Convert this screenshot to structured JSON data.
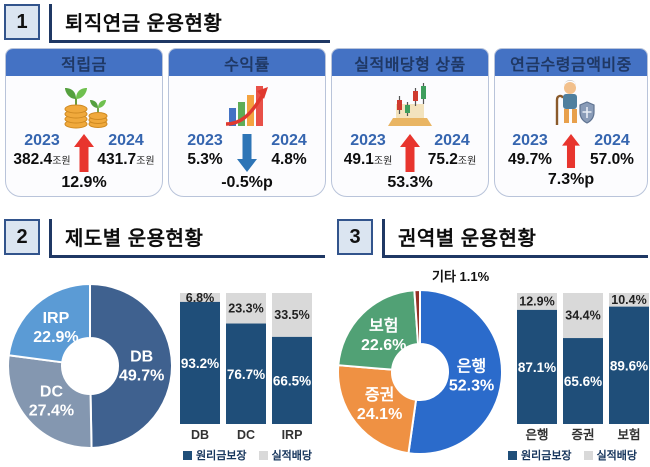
{
  "sections": [
    {
      "number": "1",
      "title": "퇴직연금  운용현황"
    },
    {
      "number": "2",
      "title": "제도별  운용현황"
    },
    {
      "number": "3",
      "title": "권역별  운용현황"
    }
  ],
  "colors": {
    "card_header": "#4472c4",
    "card_header_text": "#1f3864",
    "navy_bar": "#1f4e79",
    "gray_bar": "#d9d9d9",
    "up_arrow_red": "#e8352e",
    "down_arrow_blue": "#2e75b6",
    "year_blue": "#3565af",
    "section_line": "#1f3864"
  },
  "cards": [
    {
      "title": "적립금",
      "icon": "coin-sprout-icon",
      "year_left": "2023",
      "value_left": "382.4",
      "unit_left": "조원",
      "year_right": "2024",
      "value_right": "431.7",
      "unit_right": "조원",
      "delta": "12.9%",
      "direction": "up"
    },
    {
      "title": "수익률",
      "icon": "growth-chart-icon",
      "year_left": "2023",
      "value_left": "5.3%",
      "unit_left": "",
      "year_right": "2024",
      "value_right": "4.8%",
      "unit_right": "",
      "delta": "-0.5%p",
      "direction": "down"
    },
    {
      "title": "실적배당형 상품",
      "icon": "candlestick-chart-icon",
      "year_left": "2023",
      "value_left": "49.1",
      "unit_left": "조원",
      "year_right": "2024",
      "value_right": "75.2",
      "unit_right": "조원",
      "delta": "53.3%",
      "direction": "up"
    },
    {
      "title": "연금수령금액비중",
      "icon": "senior-shield-icon",
      "year_left": "2023",
      "value_left": "49.7%",
      "unit_left": "",
      "year_right": "2024",
      "value_right": "57.0%",
      "unit_right": "",
      "delta": "7.3%p",
      "direction": "up"
    }
  ],
  "chart_data": [
    {
      "type": "pie",
      "donut": true,
      "title": "제도별 적립금 비중",
      "labels": [
        "DB",
        "DC",
        "IRP"
      ],
      "values": [
        49.7,
        27.4,
        22.9
      ],
      "display": [
        "49.7%",
        "27.4%",
        "22.9%"
      ],
      "colors": [
        "#3f618f",
        "#8497b0",
        "#5b9bd5"
      ],
      "legend_position": "none"
    },
    {
      "type": "bar",
      "subtype": "stacked100",
      "title": "제도별 원리금보장/실적배당 비중",
      "categories": [
        "DB",
        "DC",
        "IRP"
      ],
      "series": [
        {
          "name": "원리금보장",
          "color": "#1f4e79",
          "values": [
            93.2,
            76.7,
            66.5
          ],
          "display": [
            "93.2%",
            "76.7%",
            "66.5%"
          ]
        },
        {
          "name": "실적배당",
          "color": "#d9d9d9",
          "values": [
            6.8,
            23.3,
            33.5
          ],
          "display": [
            "6.8%",
            "23.3%",
            "33.5%"
          ]
        }
      ],
      "ylim": [
        0,
        100
      ],
      "grid": false,
      "legend_position": "bottom"
    },
    {
      "type": "pie",
      "donut": true,
      "title": "권역별 적립금 비중",
      "labels": [
        "은행",
        "증권",
        "보험",
        "기타"
      ],
      "values": [
        52.3,
        24.1,
        22.6,
        1.1
      ],
      "display": [
        "52.3%",
        "24.1%",
        "22.6%",
        "1.1%"
      ],
      "colors": [
        "#2b6bcb",
        "#ef9143",
        "#51a175",
        "#943126"
      ],
      "outside_label": {
        "index": 3,
        "text": "기타 1.1%"
      },
      "legend_position": "none"
    },
    {
      "type": "bar",
      "subtype": "stacked100",
      "title": "권역별 원리금보장/실적배당 비중",
      "categories": [
        "은행",
        "증권",
        "보험"
      ],
      "series": [
        {
          "name": "원리금보장",
          "color": "#1f4e79",
          "values": [
            87.1,
            65.6,
            89.6
          ],
          "display": [
            "87.1%",
            "65.6%",
            "89.6%"
          ]
        },
        {
          "name": "실적배당",
          "color": "#d9d9d9",
          "values": [
            12.9,
            34.4,
            10.4
          ],
          "display": [
            "12.9%",
            "34.4%",
            "10.4%"
          ]
        }
      ],
      "ylim": [
        0,
        100
      ],
      "grid": false,
      "legend_position": "bottom"
    }
  ]
}
